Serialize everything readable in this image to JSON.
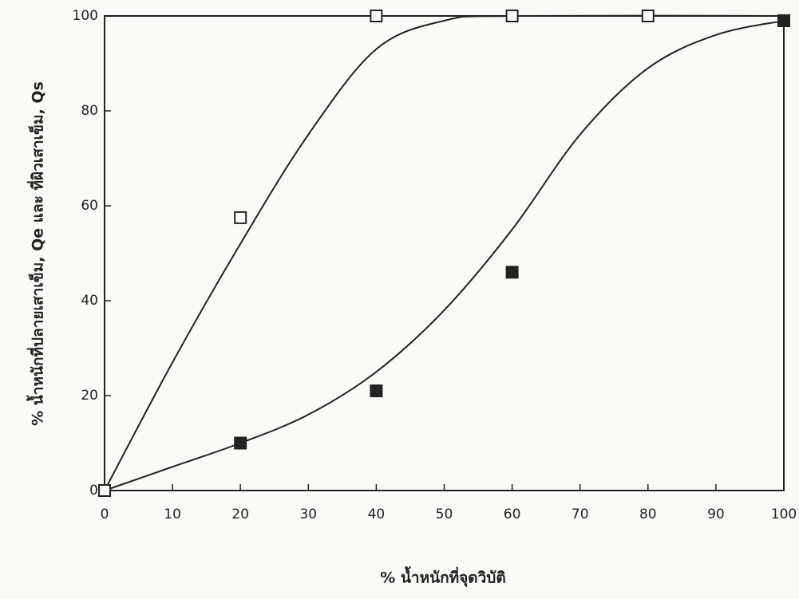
{
  "chart_data": {
    "type": "scatter",
    "xlabel": "% น้ำหนักที่จุดวิบัติ",
    "ylabel": "% น้ำหนักที่ปลายเสาเข็ม, Qe และ ที่ผิวเสาเข็ม, Qs",
    "xlim": [
      0,
      100
    ],
    "xticks": [
      0,
      10,
      20,
      30,
      40,
      50,
      60,
      70,
      80,
      90,
      100
    ],
    "ylim": [
      0,
      100
    ],
    "yticks": [
      0,
      20,
      40,
      60,
      80,
      100
    ],
    "grid": false,
    "series": [
      {
        "style": "line",
        "color": "#222222",
        "x": [
          0,
          10,
          20,
          30,
          40,
          50,
          60,
          100
        ],
        "values": [
          0,
          27,
          52,
          75,
          93,
          99,
          100,
          100
        ]
      },
      {
        "style": "line",
        "color": "#222222",
        "x": [
          0,
          10,
          20,
          30,
          40,
          50,
          60,
          70,
          80,
          90,
          100
        ],
        "values": [
          0,
          5,
          10,
          16,
          25,
          38,
          55,
          75,
          89,
          96,
          99
        ]
      },
      {
        "style": "open-square",
        "color": "#222222",
        "x": [
          0,
          20,
          40,
          60,
          80,
          100
        ],
        "values": [
          0,
          57.5,
          100,
          100,
          100,
          99
        ]
      },
      {
        "style": "filled-square",
        "color": "#222222",
        "x": [
          20,
          40,
          60,
          100
        ],
        "values": [
          10,
          21,
          46,
          99
        ]
      }
    ]
  }
}
